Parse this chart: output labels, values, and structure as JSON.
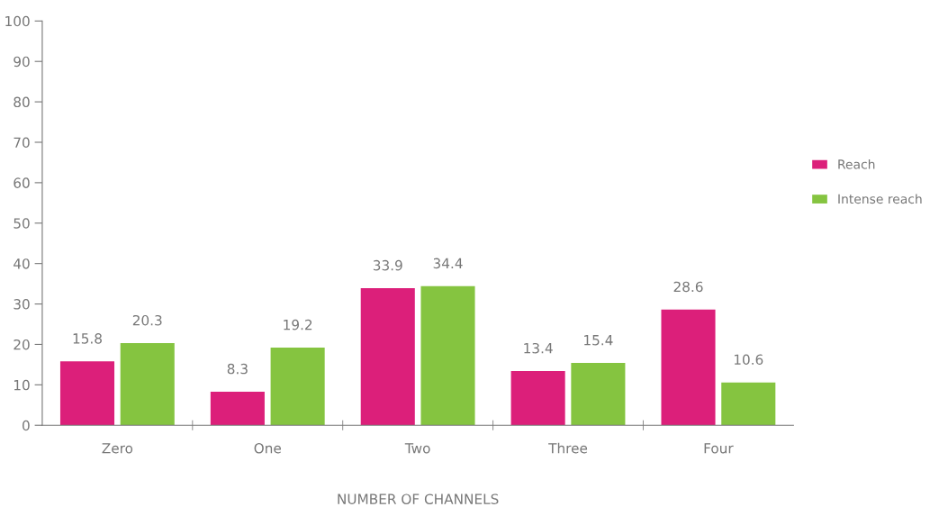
{
  "chart_data": {
    "type": "bar",
    "xlabel": "NUMBER OF CHANNELS",
    "categories": [
      "Zero",
      "One",
      "Two",
      "Three",
      "Four"
    ],
    "series": [
      {
        "name": "Reach",
        "color": "#dc1f7a",
        "values": [
          15.8,
          8.3,
          33.9,
          13.4,
          28.6
        ]
      },
      {
        "name": "Intense reach",
        "color": "#85c440",
        "values": [
          20.3,
          19.2,
          34.4,
          15.4,
          10.6
        ]
      }
    ],
    "ylim": [
      0,
      100
    ],
    "yticks": [
      0,
      10,
      20,
      30,
      40,
      50,
      60,
      70,
      80,
      90,
      100
    ],
    "grid": false,
    "legend": "right",
    "data_labels": true
  }
}
